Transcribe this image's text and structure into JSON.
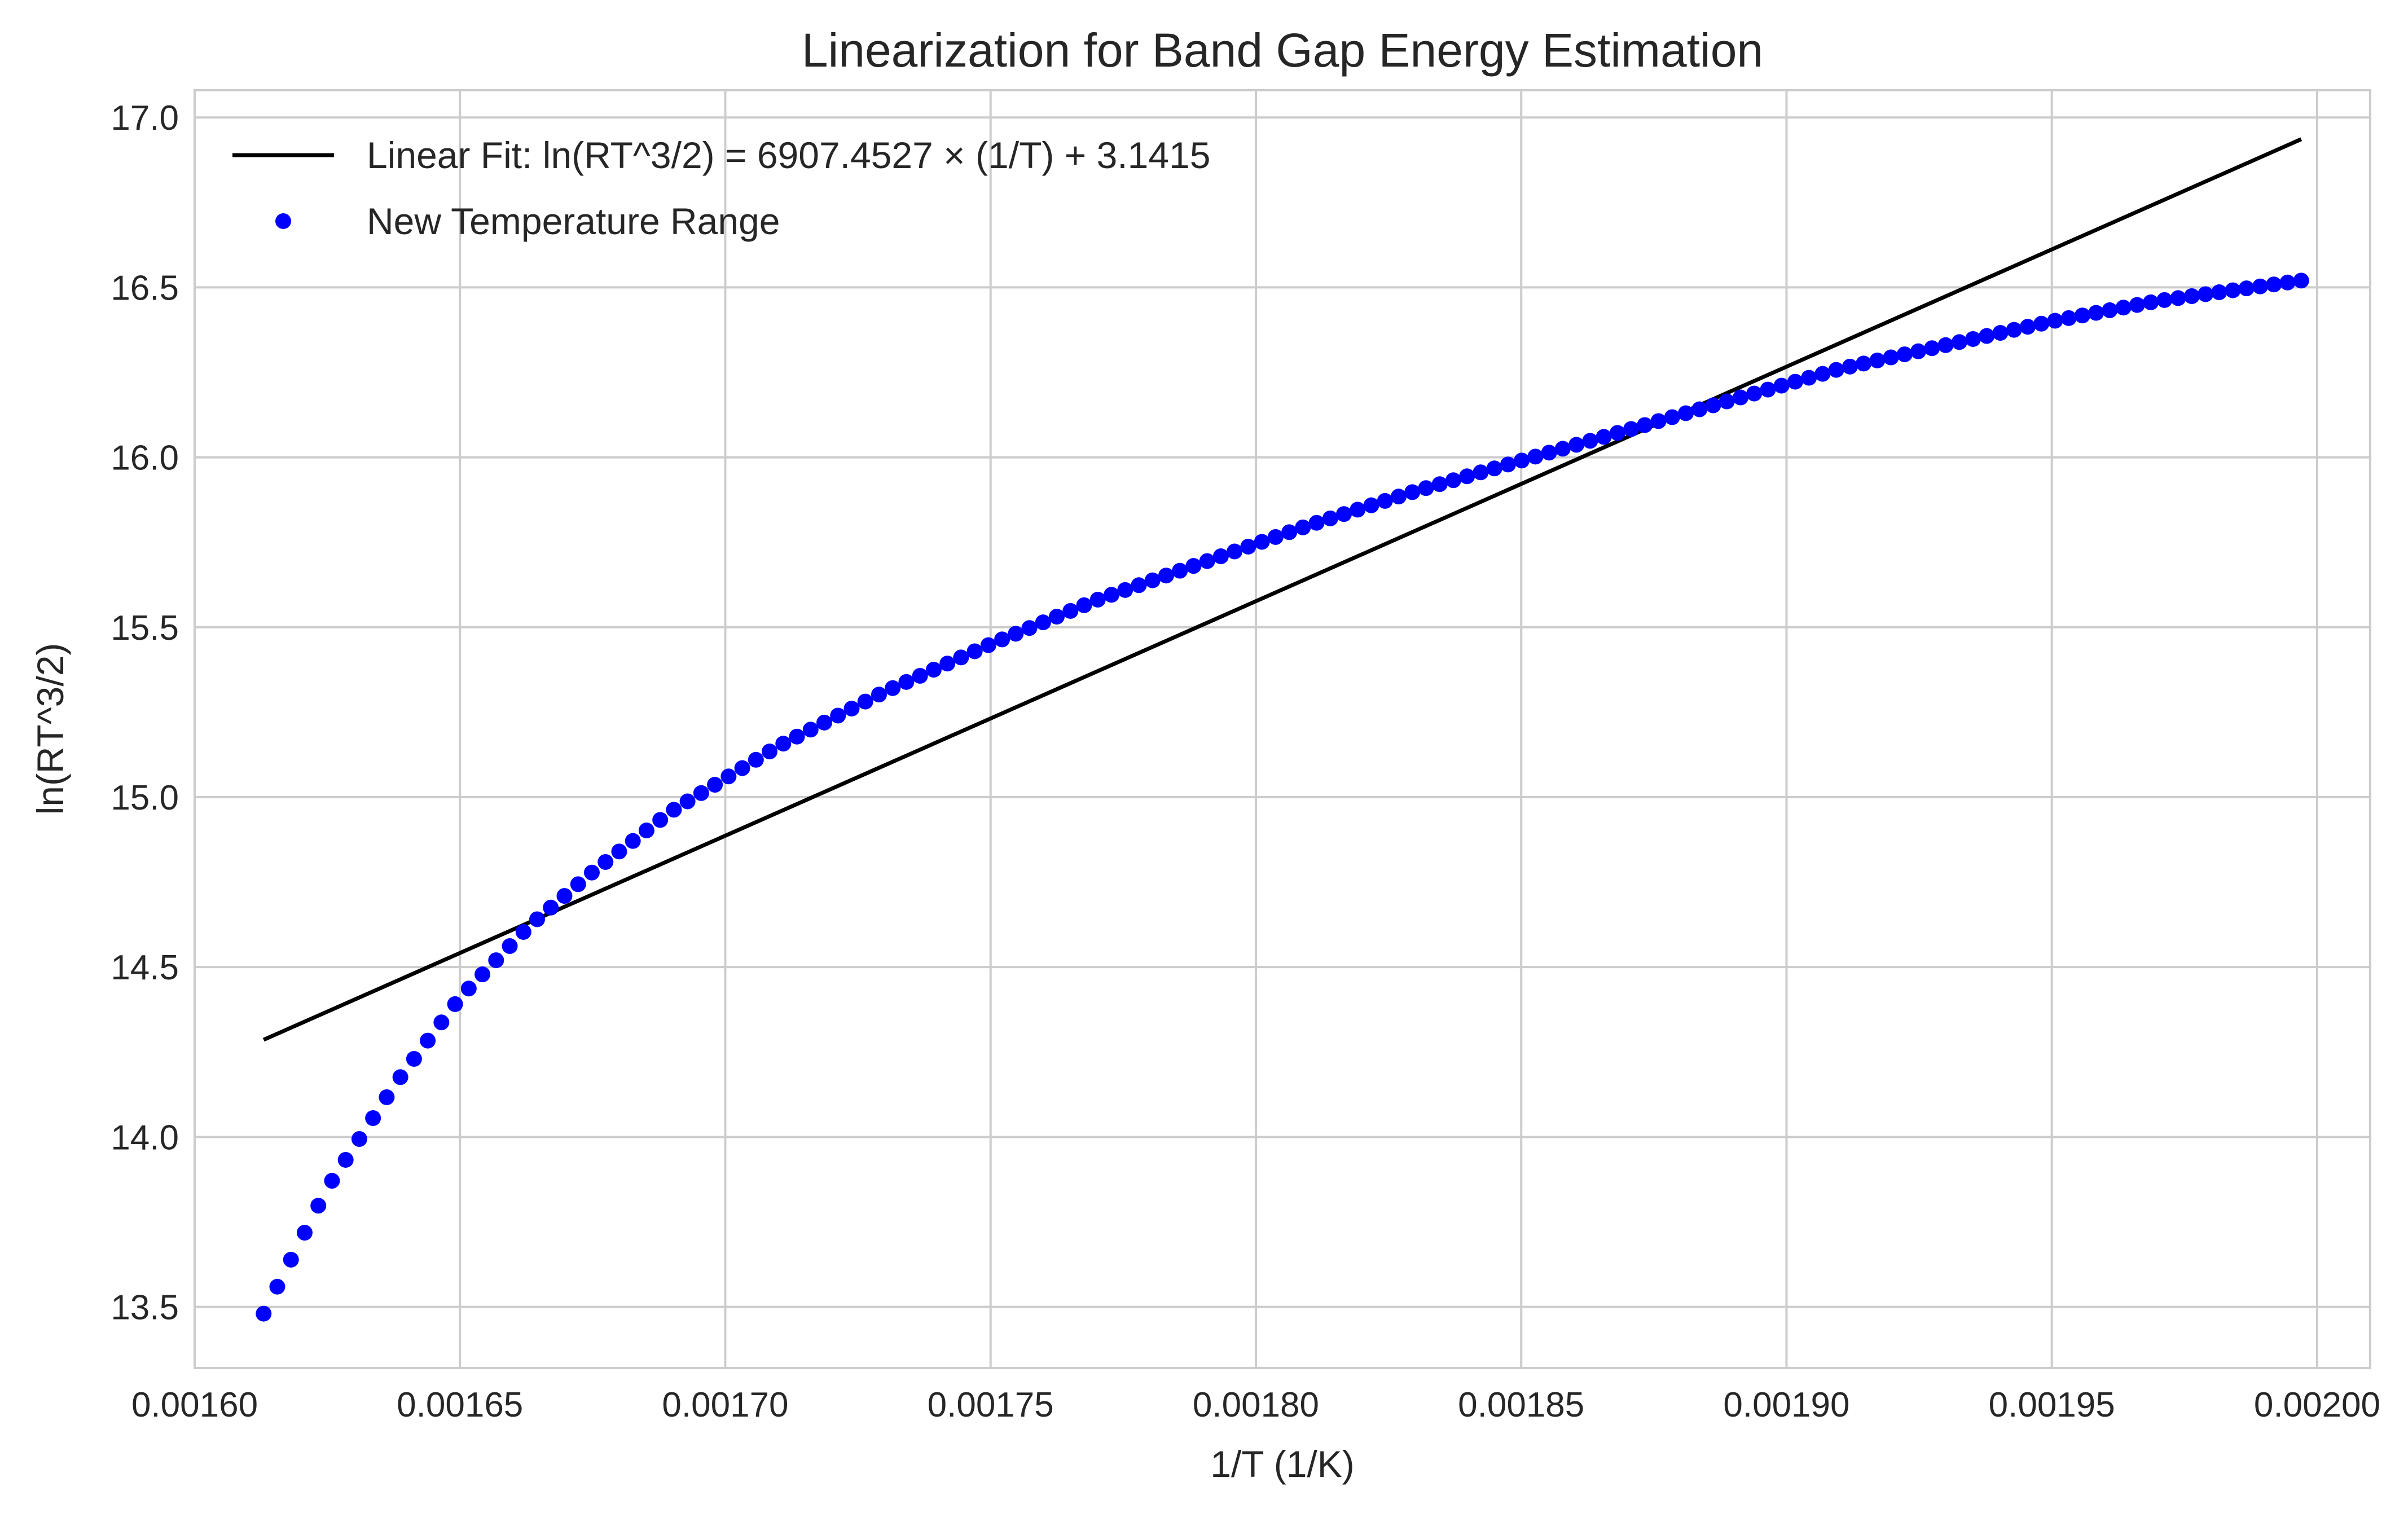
{
  "chart_data": {
    "type": "scatter",
    "title": "Linearization for Band Gap Energy Estimation",
    "xlabel": "1/T (1/K)",
    "ylabel": "ln(RT^3/2)",
    "xlim": [
      0.0016,
      0.00201
    ],
    "ylim": [
      13.32,
      17.08
    ],
    "xticks": [
      0.0016,
      0.00165,
      0.0017,
      0.00175,
      0.0018,
      0.00185,
      0.0019,
      0.00195,
      0.002
    ],
    "xtick_labels": [
      "0.00160",
      "0.00165",
      "0.00170",
      "0.00175",
      "0.00180",
      "0.00185",
      "0.00190",
      "0.00195",
      "0.00200"
    ],
    "yticks": [
      13.5,
      14.0,
      14.5,
      15.0,
      15.5,
      16.0,
      16.5,
      17.0
    ],
    "ytick_labels": [
      "13.5",
      "14.0",
      "14.5",
      "15.0",
      "15.5",
      "16.0",
      "16.5",
      "17.0"
    ],
    "grid": true,
    "legend_position": "upper-left",
    "fit_line": {
      "name": "Linear Fit: ln(RT^3/2) = 6907.4527 × (1/T) + 3.1415",
      "color": "#000000",
      "x": [
        0.001613,
        0.001997
      ],
      "y": [
        14.286,
        16.936
      ]
    },
    "series": [
      {
        "name": "New Temperature Range",
        "color": "#0000ff",
        "x": [
          0.001613,
          0.001625,
          0.001638,
          0.00165,
          0.001663,
          0.001675,
          0.00169,
          0.00171,
          0.00173,
          0.00175,
          0.00177,
          0.00179,
          0.00181,
          0.00183,
          0.00185,
          0.00187,
          0.00189,
          0.00191,
          0.00193,
          0.00195,
          0.00197,
          0.001997
        ],
        "y": [
          13.48,
          13.85,
          14.16,
          14.41,
          14.62,
          14.78,
          14.96,
          15.15,
          15.31,
          15.45,
          15.58,
          15.69,
          15.8,
          15.9,
          15.99,
          16.08,
          16.17,
          16.26,
          16.33,
          16.4,
          16.46,
          16.52
        ]
      }
    ]
  }
}
